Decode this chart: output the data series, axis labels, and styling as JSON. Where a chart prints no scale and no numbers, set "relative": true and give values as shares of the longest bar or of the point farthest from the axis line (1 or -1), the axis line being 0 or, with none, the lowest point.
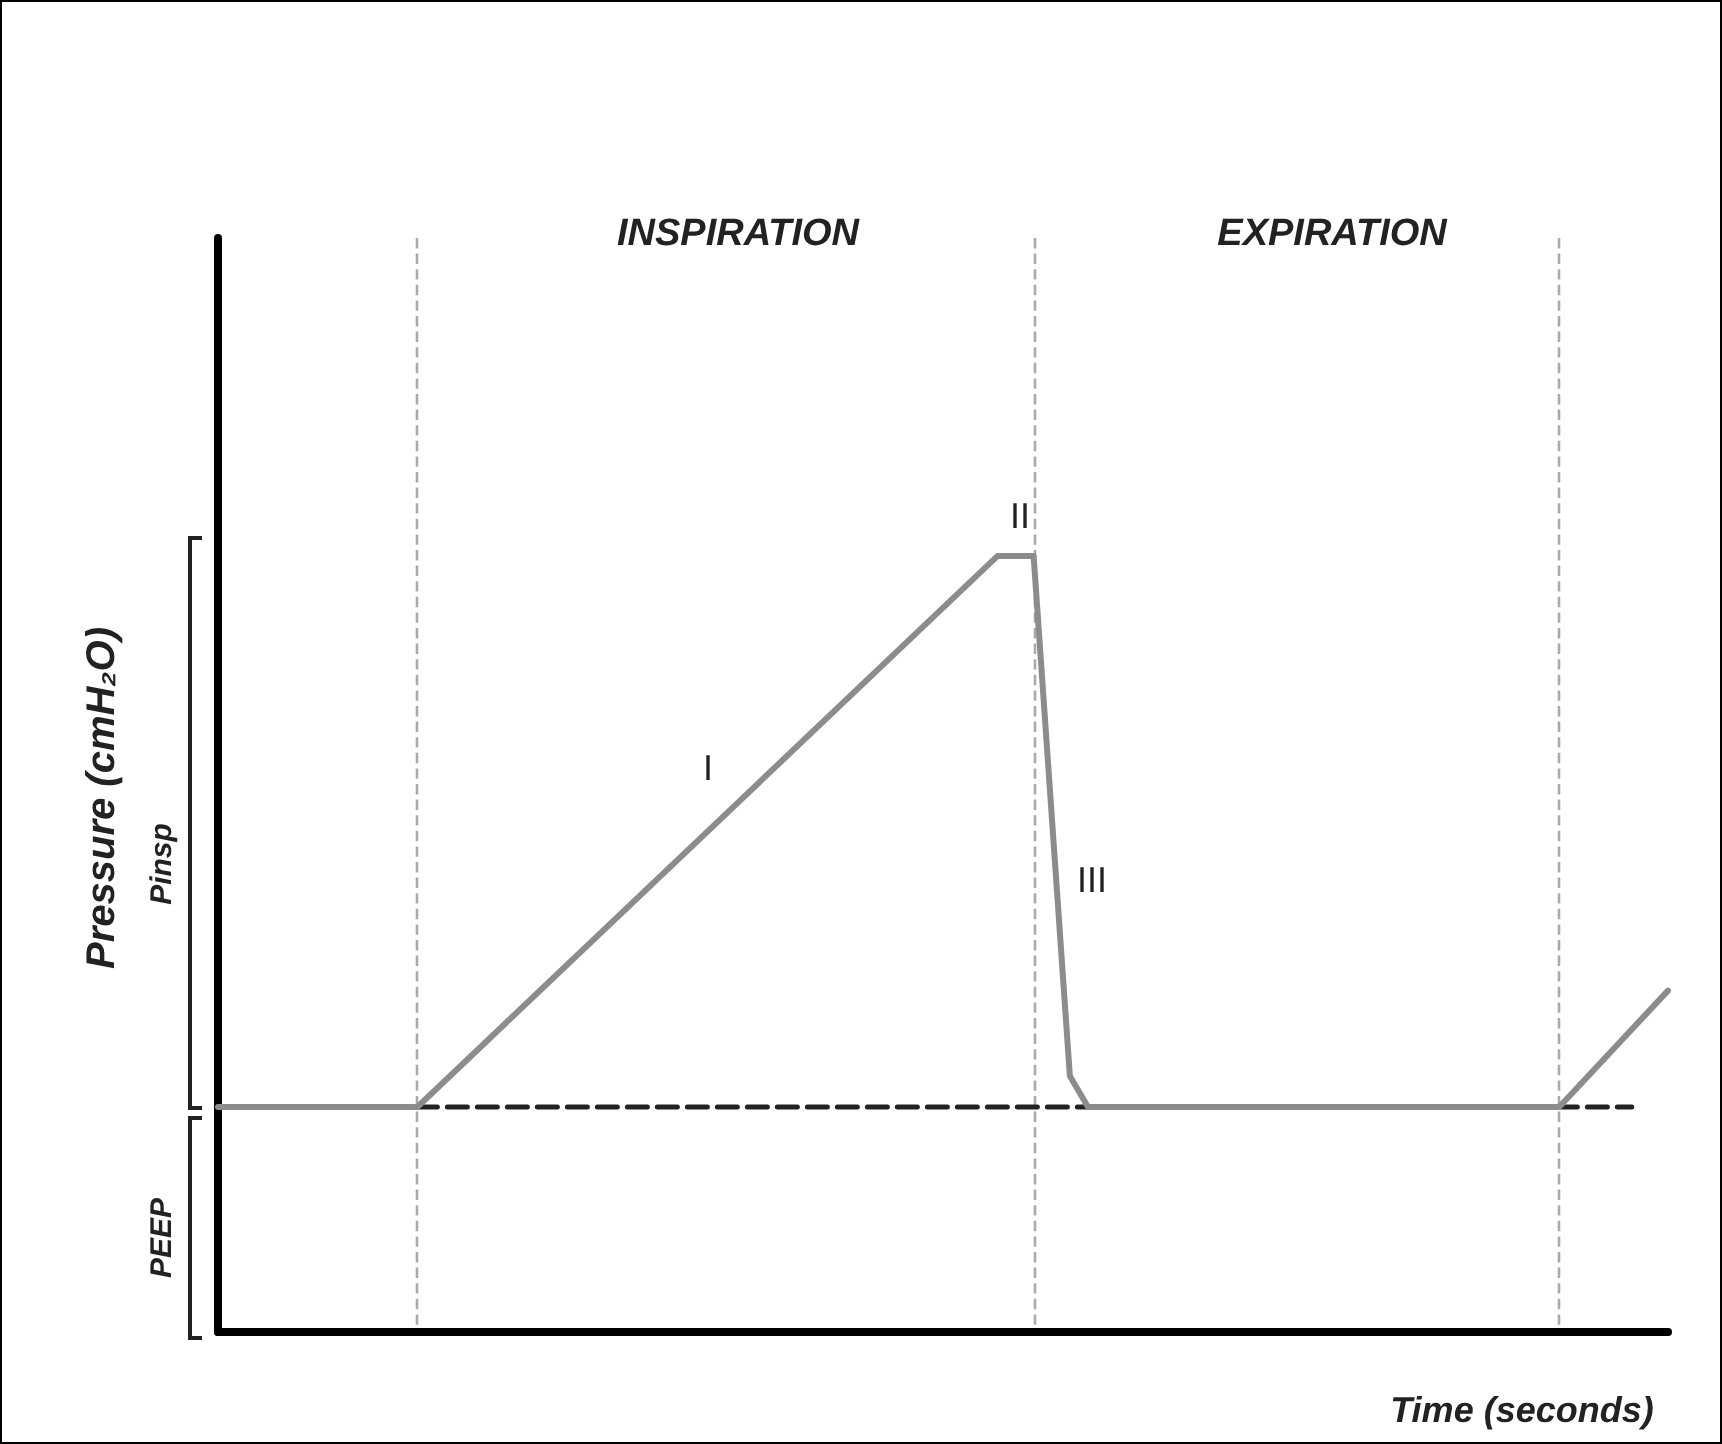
{
  "chart_data": {
    "type": "line",
    "relative": true,
    "xlabel": "Time (seconds)",
    "ylabel": "Pressure (cmH₂O)",
    "annotations": [
      "INSPIRATION",
      "EXPIRATION",
      "I",
      "II",
      "III",
      "Pinsp",
      "PEEP"
    ],
    "categories": [
      null,
      null,
      null,
      null,
      null,
      null,
      null,
      null,
      null,
      null,
      null,
      null,
      null,
      null,
      null,
      null,
      null,
      null,
      null,
      null,
      null,
      null,
      null,
      null,
      null,
      null,
      null,
      null,
      null,
      null,
      null,
      null,
      null,
      null,
      null,
      null,
      null,
      null,
      null,
      null,
      null,
      null,
      null,
      null,
      null,
      null,
      null,
      null,
      null,
      null,
      null,
      null,
      null,
      null,
      null,
      null,
      null,
      null,
      null,
      null,
      null,
      null,
      null,
      null,
      null,
      null,
      null,
      null,
      null,
      null,
      null,
      null,
      null,
      null,
      null,
      null,
      null,
      null,
      null,
      null,
      null
    ],
    "series": [
      {
        "color": "#8c8c8c",
        "line_style": "solid",
        "values": [
          0.29,
          null,
          null,
          null,
          null,
          null,
          null,
          null,
          null,
          null,
          null,
          0.29,
          null,
          null,
          null,
          null,
          null,
          null,
          null,
          null,
          null,
          null,
          null,
          null,
          null,
          null,
          null,
          null,
          null,
          null,
          null,
          null,
          null,
          null,
          null,
          null,
          null,
          null,
          null,
          null,
          null,
          null,
          null,
          1,
          null,
          1,
          null,
          0.33,
          0.29,
          null,
          null,
          null,
          null,
          null,
          null,
          null,
          null,
          null,
          null,
          null,
          null,
          null,
          null,
          null,
          null,
          null,
          null,
          null,
          null,
          null,
          null,
          null,
          null,
          null,
          0.29,
          null,
          null,
          null,
          null,
          null,
          0.44
        ]
      },
      {
        "color": "#222222",
        "line_style": "dashed",
        "values": [
          null,
          null,
          null,
          null,
          null,
          null,
          null,
          null,
          null,
          null,
          null,
          0.29,
          null,
          null,
          null,
          null,
          null,
          null,
          null,
          null,
          null,
          null,
          null,
          null,
          null,
          null,
          null,
          null,
          null,
          null,
          null,
          null,
          null,
          null,
          null,
          null,
          null,
          null,
          null,
          null,
          null,
          null,
          null,
          null,
          null,
          null,
          null,
          null,
          null,
          null,
          null,
          null,
          null,
          null,
          null,
          null,
          null,
          null,
          null,
          null,
          null,
          null,
          null,
          null,
          null,
          null,
          null,
          null,
          null,
          null,
          null,
          null,
          null,
          null,
          null,
          null,
          null,
          null,
          0.29,
          null,
          null
        ]
      }
    ],
    "grid": "x",
    "marker": "none"
  }
}
